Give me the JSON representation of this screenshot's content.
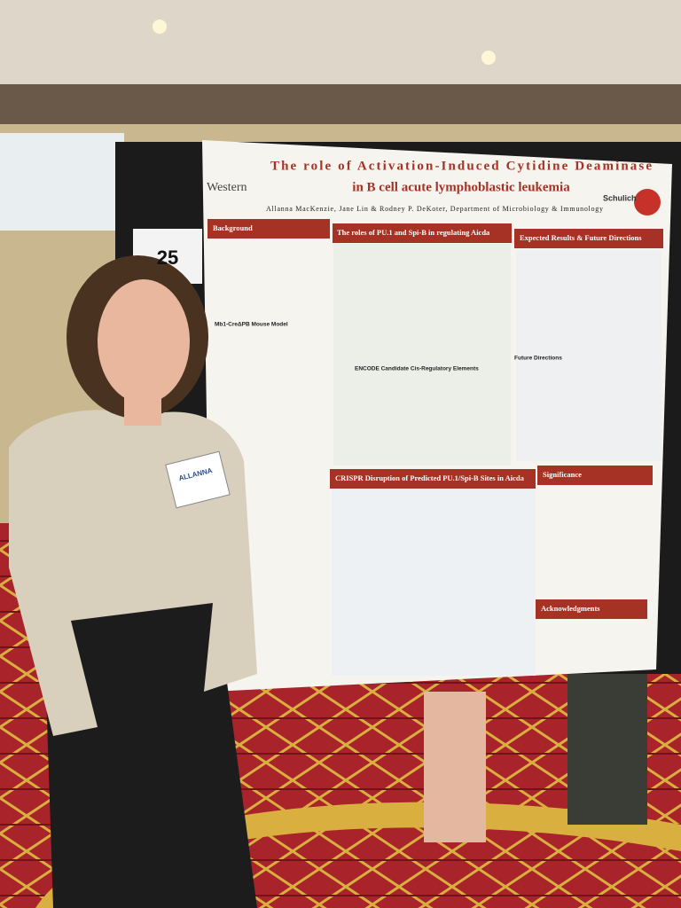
{
  "board_number": "25",
  "name_tag": "ALLANNA",
  "poster": {
    "title_lines": [
      "The role of Activation-Induced Cytidine Deaminase",
      "in B cell acute lymphoblastic leukemia"
    ],
    "authors": "Allanna MacKenzie, Jane Lin & Rodney P. DeKoter, Department of Microbiology & Immunology",
    "logos": [
      "Western",
      "Schulich"
    ],
    "sections": [
      "Background",
      "The roles of PU.1 and Spi-B in regulating Aicda",
      "Expected Results & Future Directions",
      "Mb1-CreΔPB Mouse Model",
      "ENCODE Candidate Cis-Regulatory Elements",
      "Future Directions",
      "CRISPR Disruption of Predicted PU.1/Spi-B Sites in Aicda",
      "Significance",
      "Acknowledgments"
    ]
  }
}
